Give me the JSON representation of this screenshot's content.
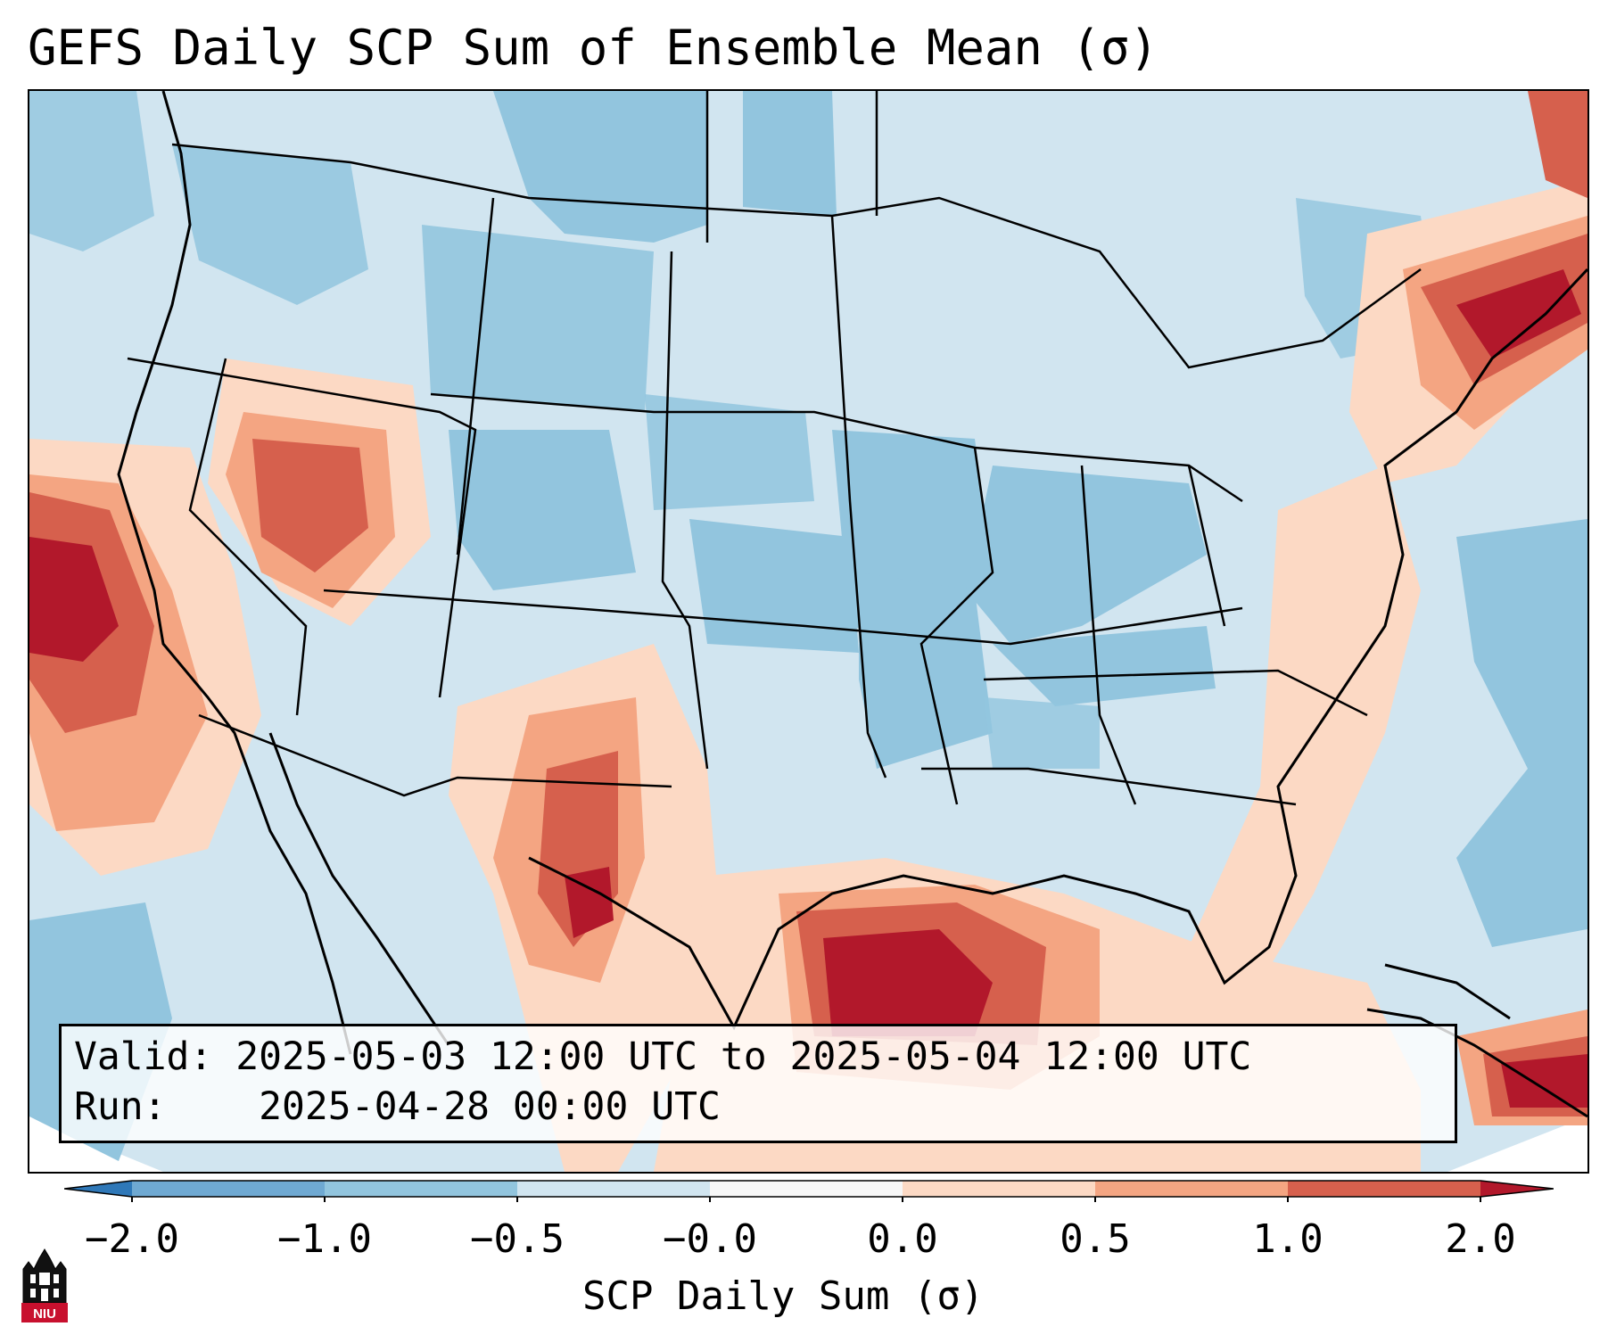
{
  "title": "GEFS Daily SCP Sum of Ensemble Mean (σ)",
  "info": {
    "valid_label": "Valid:",
    "valid_value": "2025-05-03 12:00 UTC to 2025-05-04 12:00 UTC",
    "run_label": "Run:",
    "run_value": "2025-04-28 00:00 UTC"
  },
  "colorbar": {
    "label": "SCP Daily Sum (σ)",
    "ticks": [
      "−2.0",
      "−1.0",
      "−0.5",
      "−0.0",
      "0.0",
      "0.5",
      "1.0",
      "2.0"
    ],
    "colors": [
      "#2f78b8",
      "#6fa9d2",
      "#92c5de",
      "#d1e5f0",
      "#f7f7f7",
      "#fcd9c4",
      "#f4a582",
      "#d6604d",
      "#b2182b"
    ]
  },
  "logo_text": "NIU"
}
